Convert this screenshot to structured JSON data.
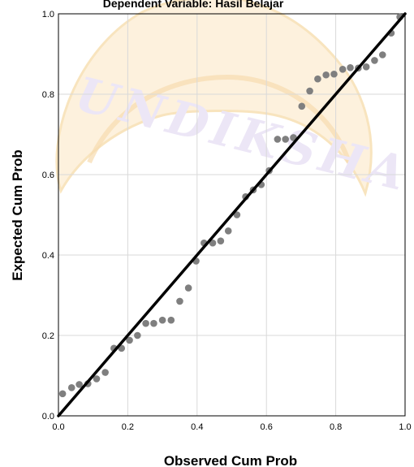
{
  "chart_data": {
    "type": "scatter",
    "title": "Dependent Variable: Hasil Belajar",
    "xlabel": "Observed Cum Prob",
    "ylabel": "Expected Cum Prob",
    "xlim": [
      0,
      1
    ],
    "ylim": [
      0,
      1
    ],
    "xticks": [
      "0.0",
      "0.2",
      "0.4",
      "0.6",
      "0.8",
      "1.0"
    ],
    "yticks": [
      "0.0",
      "0.2",
      "0.4",
      "0.6",
      "0.8",
      "1.0"
    ],
    "grid": true,
    "reference_line": [
      [
        0,
        0
      ],
      [
        1,
        1
      ]
    ],
    "points": [
      [
        0.012,
        0.055
      ],
      [
        0.038,
        0.07
      ],
      [
        0.06,
        0.078
      ],
      [
        0.085,
        0.08
      ],
      [
        0.11,
        0.092
      ],
      [
        0.135,
        0.108
      ],
      [
        0.16,
        0.168
      ],
      [
        0.182,
        0.168
      ],
      [
        0.205,
        0.188
      ],
      [
        0.228,
        0.2
      ],
      [
        0.252,
        0.23
      ],
      [
        0.275,
        0.23
      ],
      [
        0.3,
        0.238
      ],
      [
        0.325,
        0.238
      ],
      [
        0.35,
        0.285
      ],
      [
        0.375,
        0.318
      ],
      [
        0.397,
        0.385
      ],
      [
        0.42,
        0.43
      ],
      [
        0.445,
        0.43
      ],
      [
        0.468,
        0.435
      ],
      [
        0.49,
        0.46
      ],
      [
        0.515,
        0.5
      ],
      [
        0.54,
        0.545
      ],
      [
        0.562,
        0.562
      ],
      [
        0.585,
        0.575
      ],
      [
        0.608,
        0.61
      ],
      [
        0.632,
        0.688
      ],
      [
        0.655,
        0.688
      ],
      [
        0.678,
        0.692
      ],
      [
        0.702,
        0.77
      ],
      [
        0.725,
        0.808
      ],
      [
        0.748,
        0.838
      ],
      [
        0.772,
        0.848
      ],
      [
        0.795,
        0.85
      ],
      [
        0.82,
        0.862
      ],
      [
        0.842,
        0.866
      ],
      [
        0.865,
        0.865
      ],
      [
        0.888,
        0.868
      ],
      [
        0.912,
        0.884
      ],
      [
        0.935,
        0.898
      ],
      [
        0.96,
        0.952
      ],
      [
        0.985,
        0.992
      ]
    ]
  },
  "watermark": {
    "text": "UNDIKSHA",
    "colors": {
      "logo_fill": "#fdf0da",
      "logo_stroke": "#f8e2b8",
      "text": "#ece6f6"
    }
  },
  "colors": {
    "points": "#7f7f7f",
    "line": "#000000",
    "grid": "#d9d9d9",
    "frame": "#000000"
  }
}
